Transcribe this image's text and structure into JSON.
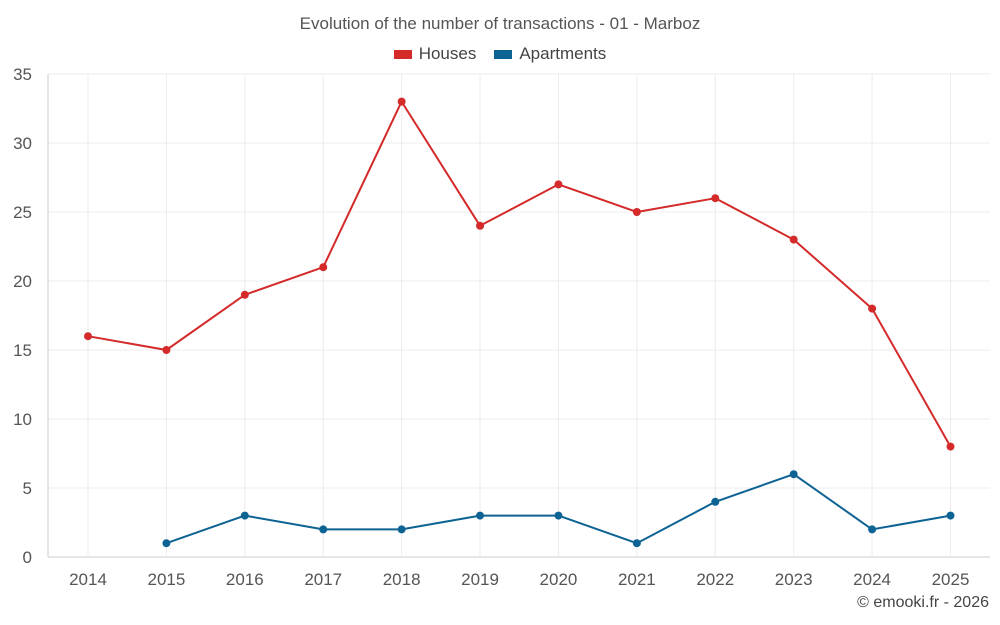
{
  "chart_data": {
    "type": "line",
    "title": "Evolution of the number of transactions - 01 - Marboz",
    "xlabel": "",
    "ylabel": "",
    "categories": [
      "2014",
      "2015",
      "2016",
      "2017",
      "2018",
      "2019",
      "2020",
      "2021",
      "2022",
      "2023",
      "2024",
      "2025"
    ],
    "ylim": [
      0,
      35
    ],
    "yticks": [
      0,
      5,
      10,
      15,
      20,
      25,
      30,
      35
    ],
    "grid": true,
    "legend_position": "top-center",
    "series": [
      {
        "name": "Houses",
        "color": "#d42a2a",
        "values": [
          16,
          15,
          19,
          21,
          33,
          24,
          27,
          25,
          26,
          23,
          18,
          8
        ]
      },
      {
        "name": "Apartments",
        "color": "#0d6394",
        "values": [
          null,
          1,
          3,
          2,
          2,
          3,
          3,
          1,
          4,
          6,
          2,
          3
        ]
      }
    ]
  },
  "footer": {
    "credit": "© emooki.fr - 2026"
  }
}
